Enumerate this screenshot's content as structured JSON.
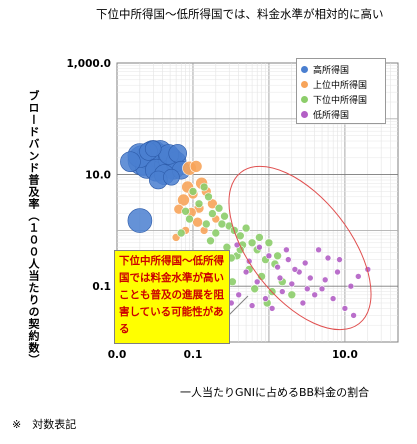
{
  "header": {
    "title": "下位中所得国～低所得国では、料金水準が相対的に高い",
    "ylabel": "ブロードバンド普及率（１００人当たりの契約数）",
    "xlabel": "一人当たりGNIに占めるBB料金の割合",
    "note": "※　対数表記",
    "callout": "下位中所得国～低所得国では料金水準が高いことも普及の進展を阻害している可能性がある"
  },
  "colors": {
    "high": "#4a7fd0",
    "upper_middle": "#f7a45a",
    "lower_middle": "#8ccd6a",
    "low": "#b35fc5",
    "ellipse": "#e05050",
    "grid": "#bdbdbd",
    "plot_border": "#808080"
  },
  "chart_data": {
    "type": "scatter",
    "x_scale": "log",
    "y_scale": "log",
    "xlim": [
      0.01,
      50
    ],
    "ylim": [
      0.01,
      1000
    ],
    "x_ticks": [
      {
        "value": 0.01,
        "label": "0.0"
      },
      {
        "value": 0.1,
        "label": "0.1"
      },
      {
        "value": 10,
        "label": "10.0"
      }
    ],
    "y_ticks": [
      {
        "value": 1000,
        "label": "1,000.0"
      },
      {
        "value": 10,
        "label": "10.0"
      },
      {
        "value": 0.1,
        "label": "0.1"
      }
    ],
    "grid": true,
    "legend_position": "top-right",
    "series": [
      {
        "name": "高所得国",
        "key": "high",
        "points": [
          [
            0.022,
            18,
            15
          ],
          [
            0.028,
            21,
            14
          ],
          [
            0.034,
            17,
            14
          ],
          [
            0.03,
            24,
            13
          ],
          [
            0.04,
            20,
            13
          ],
          [
            0.025,
            14,
            12
          ],
          [
            0.045,
            15,
            12
          ],
          [
            0.037,
            26,
            11
          ],
          [
            0.05,
            19,
            12
          ],
          [
            0.055,
            13,
            11
          ],
          [
            0.02,
            22,
            12
          ],
          [
            0.033,
            12,
            11
          ],
          [
            0.06,
            17,
            10
          ],
          [
            0.042,
            10,
            10
          ],
          [
            0.026,
            26,
            9
          ],
          [
            0.048,
            23,
            10
          ],
          [
            0.015,
            17,
            10
          ],
          [
            0.035,
            8,
            9
          ],
          [
            0.063,
            24,
            9
          ],
          [
            0.07,
            12,
            9
          ],
          [
            0.03,
            29,
            8
          ],
          [
            0.052,
            9,
            8
          ],
          [
            0.02,
            1.5,
            12
          ],
          [
            0.205,
            0.3,
            8
          ]
        ]
      },
      {
        "name": "上位中所得国",
        "key": "upper_middle",
        "points": [
          [
            0.09,
            13,
            7
          ],
          [
            0.11,
            14,
            6
          ],
          [
            0.13,
            7,
            6
          ],
          [
            0.085,
            6,
            6
          ],
          [
            0.075,
            3.5,
            6
          ],
          [
            0.1,
            4.5,
            5
          ],
          [
            0.12,
            2.5,
            5
          ],
          [
            0.15,
            5,
            5
          ],
          [
            0.095,
            2.1,
            5
          ],
          [
            0.065,
            2.4,
            5
          ],
          [
            0.18,
            3,
            5
          ],
          [
            0.115,
            1.4,
            5
          ],
          [
            0.14,
            1.0,
            4
          ],
          [
            0.08,
            1.0,
            4
          ],
          [
            0.2,
            1.6,
            4
          ],
          [
            0.06,
            0.75,
            4
          ]
        ]
      },
      {
        "name": "下位中所得国",
        "key": "lower_middle",
        "points": [
          [
            0.14,
            6,
            4
          ],
          [
            0.16,
            4,
            4
          ],
          [
            0.12,
            3,
            4
          ],
          [
            0.1,
            5,
            4
          ],
          [
            0.18,
            2,
            4
          ],
          [
            0.22,
            2.5,
            4
          ],
          [
            0.26,
            1.8,
            4
          ],
          [
            0.3,
            1.2,
            4
          ],
          [
            0.35,
            1.0,
            4
          ],
          [
            0.2,
            0.9,
            4
          ],
          [
            0.42,
            0.8,
            4
          ],
          [
            0.5,
            1.1,
            4
          ],
          [
            0.6,
            0.6,
            4
          ],
          [
            0.28,
            0.5,
            4
          ],
          [
            0.38,
            0.35,
            4
          ],
          [
            0.7,
            0.45,
            4
          ],
          [
            0.9,
            0.3,
            4
          ],
          [
            1.2,
            0.25,
            4
          ],
          [
            0.55,
            0.2,
            4
          ],
          [
            0.8,
            0.15,
            4
          ],
          [
            1.5,
            0.12,
            4
          ],
          [
            0.24,
            0.2,
            4
          ],
          [
            0.33,
            0.12,
            4
          ],
          [
            1.1,
            0.08,
            4
          ],
          [
            2.0,
            0.07,
            4
          ],
          [
            0.65,
            0.09,
            4
          ],
          [
            0.15,
            1.3,
            4
          ],
          [
            0.45,
            0.55,
            4
          ],
          [
            1.0,
            0.6,
            4
          ],
          [
            0.09,
            1.6,
            4
          ],
          [
            0.07,
            0.9,
            4
          ],
          [
            0.17,
            0.65,
            4
          ],
          [
            1.3,
            0.35,
            4
          ],
          [
            0.75,
            0.75,
            4
          ],
          [
            0.42,
            0.45,
            4
          ],
          [
            0.95,
            0.05,
            4
          ],
          [
            0.32,
            0.32,
            4
          ],
          [
            0.24,
            1.3,
            4
          ],
          [
            0.08,
            2.2,
            4
          ]
        ]
      },
      {
        "name": "低所得国",
        "key": "low",
        "points": [
          [
            0.38,
            0.55,
            3
          ],
          [
            0.55,
            0.28,
            3
          ],
          [
            0.75,
            0.5,
            3
          ],
          [
            1.0,
            0.35,
            3
          ],
          [
            1.3,
            0.22,
            3
          ],
          [
            1.8,
            0.3,
            3
          ],
          [
            2.5,
            0.18,
            3
          ],
          [
            3.5,
            0.14,
            3
          ],
          [
            5.0,
            0.09,
            3
          ],
          [
            7.0,
            0.06,
            3
          ],
          [
            10.0,
            0.04,
            3
          ],
          [
            13.0,
            0.03,
            3
          ],
          [
            2.0,
            0.11,
            3
          ],
          [
            3.0,
            0.26,
            3
          ],
          [
            4.5,
            0.45,
            3
          ],
          [
            6.0,
            0.32,
            3
          ],
          [
            8.0,
            0.18,
            3
          ],
          [
            1.5,
            0.08,
            3
          ],
          [
            0.9,
            0.06,
            3
          ],
          [
            0.4,
            0.07,
            3
          ],
          [
            0.6,
            0.045,
            3
          ],
          [
            1.1,
            0.04,
            3
          ],
          [
            2.8,
            0.05,
            3
          ],
          [
            4.0,
            0.07,
            3
          ],
          [
            0.7,
            0.12,
            3
          ],
          [
            0.32,
            0.05,
            3
          ],
          [
            1.7,
            0.45,
            3
          ],
          [
            3.2,
            0.09,
            3
          ],
          [
            5.5,
            0.13,
            3
          ],
          [
            12.0,
            0.1,
            3
          ],
          [
            1.4,
            0.14,
            3
          ],
          [
            2.2,
            0.2,
            3
          ],
          [
            0.5,
            0.18,
            3
          ],
          [
            0.28,
            0.1,
            3
          ],
          [
            8.5,
            0.3,
            3
          ],
          [
            15.0,
            0.15,
            3
          ],
          [
            20.0,
            0.2,
            3
          ]
        ]
      }
    ]
  }
}
